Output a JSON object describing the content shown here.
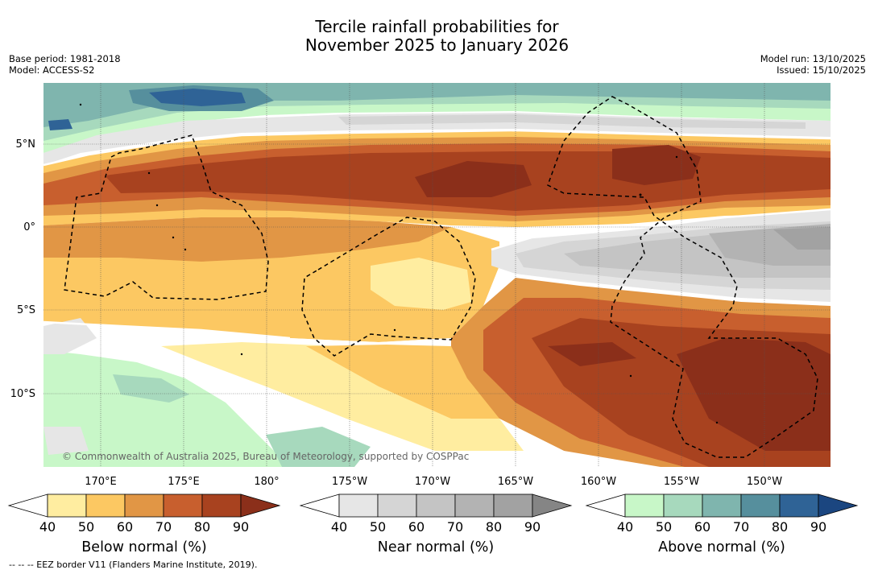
{
  "title": {
    "line1": "Tercile rainfall probabilities for",
    "line2": "November 2025 to January 2026"
  },
  "meta": {
    "base_period": "Base period: 1981-2018",
    "model": "Model: ACCESS-S2",
    "model_run": "Model run: 13/10/2025",
    "issued": "Issued: 15/10/2025"
  },
  "map": {
    "lat_labels": [
      "5°N",
      "0°",
      "5°S",
      "10°S"
    ],
    "lon_labels": [
      "170°E",
      "175°E",
      "180°",
      "175°W",
      "170°W",
      "165°W",
      "160°W",
      "155°W",
      "150°W"
    ],
    "copyright": "© Commonwealth of Australia 2025, Bureau of Meteorology, supported by COSPPac",
    "colors": {
      "below": [
        "#ffffff",
        "#ffeda0",
        "#fcc862",
        "#e19645",
        "#c85f2e",
        "#a8421f",
        "#8b2f1a"
      ],
      "near": [
        "#ffffff",
        "#e6e6e6",
        "#d5d5d5",
        "#c4c4c4",
        "#b3b3b3",
        "#a2a2a2",
        "#858585"
      ],
      "above": [
        "#ffffff",
        "#c8f7c8",
        "#a7d9bd",
        "#7fb5ae",
        "#568f9d",
        "#2f6396",
        "#1b4680"
      ]
    }
  },
  "colorbars": [
    {
      "label": "Below normal (%)",
      "ticks": [
        "40",
        "50",
        "60",
        "70",
        "80",
        "90"
      ]
    },
    {
      "label": "Near normal (%)",
      "ticks": [
        "40",
        "50",
        "60",
        "70",
        "80",
        "90"
      ]
    },
    {
      "label": "Above normal (%)",
      "ticks": [
        "40",
        "50",
        "60",
        "70",
        "80",
        "90"
      ]
    }
  ],
  "footnote": "--  --  -- EEZ border V11 (Flanders Marine Institute, 2019)."
}
